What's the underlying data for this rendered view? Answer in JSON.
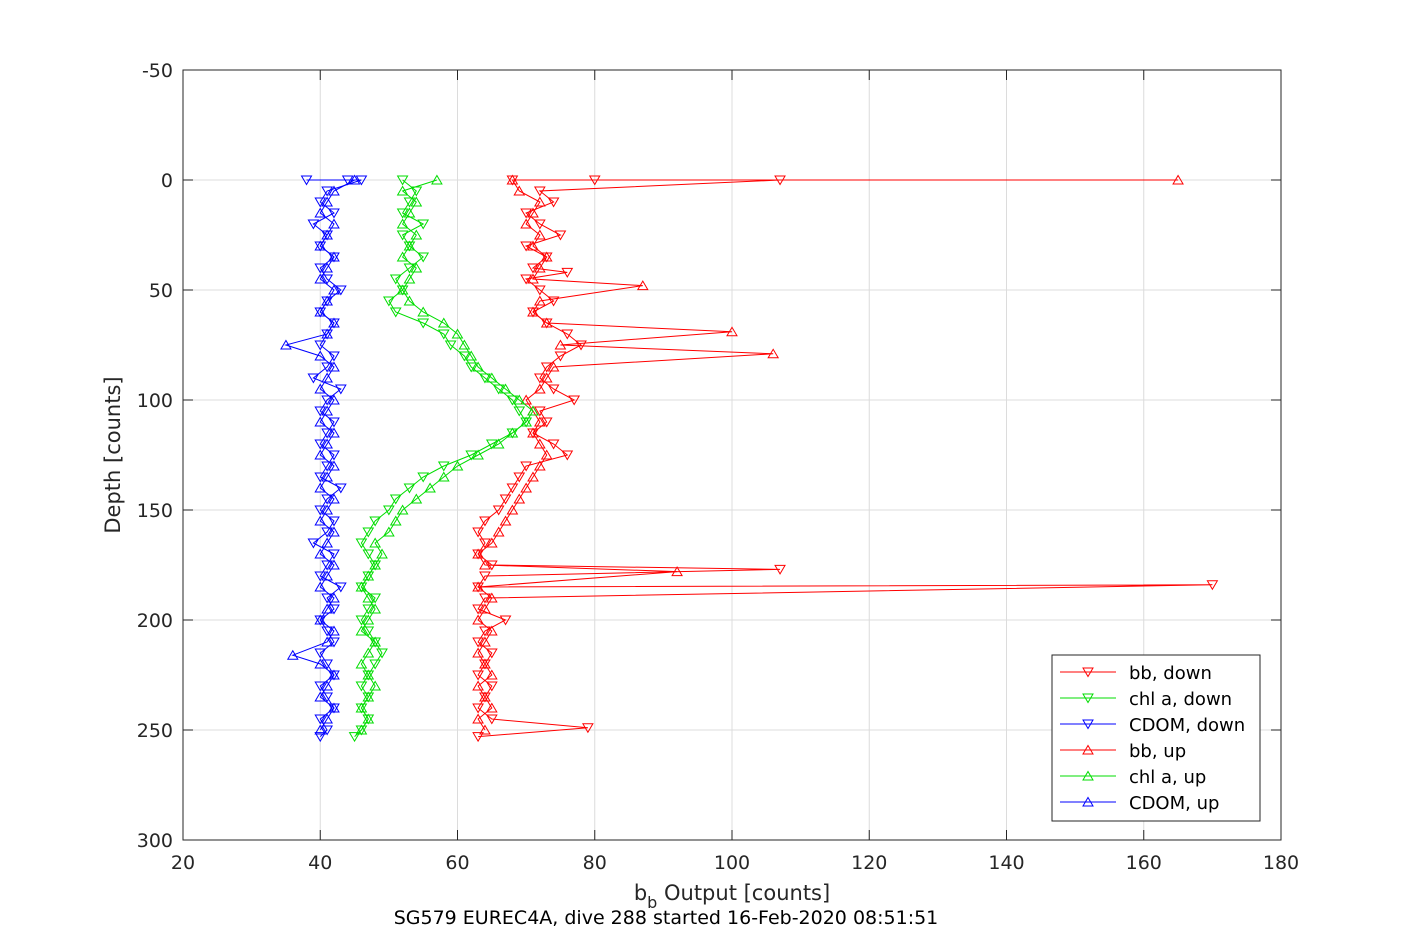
{
  "chart_data": {
    "type": "line",
    "title": "",
    "xlabel": "b",
    "xlabel_sub": "b",
    "xlabel_rest": " Output [counts]",
    "ylabel": "Depth [counts]",
    "caption": "SG579 EUREC4A, dive 288 started 16-Feb-2020 08:51:51",
    "xlim": [
      20,
      180
    ],
    "ylim": [
      -50,
      300
    ],
    "y_reversed": true,
    "grid": true,
    "legend_position": "bottom-right",
    "x_ticks": [
      "20",
      "40",
      "60",
      "80",
      "100",
      "120",
      "140",
      "160",
      "180"
    ],
    "y_ticks": [
      "-50",
      "0",
      "50",
      "100",
      "150",
      "200",
      "250",
      "300"
    ],
    "x_tick_values": [
      20,
      40,
      60,
      80,
      100,
      120,
      140,
      160,
      180
    ],
    "y_tick_values": [
      -50,
      0,
      50,
      100,
      150,
      200,
      250,
      300
    ],
    "series": [
      {
        "name": "bb, down",
        "color": "#ff0000",
        "marker": "triangle-down",
        "points": [
          [
            68,
            0
          ],
          [
            80,
            0
          ],
          [
            107,
            0
          ],
          [
            72,
            5
          ],
          [
            74,
            10
          ],
          [
            70,
            15
          ],
          [
            72,
            20
          ],
          [
            75,
            25
          ],
          [
            70,
            30
          ],
          [
            73,
            35
          ],
          [
            71,
            40
          ],
          [
            76,
            42
          ],
          [
            70,
            45
          ],
          [
            72,
            50
          ],
          [
            74,
            55
          ],
          [
            71,
            60
          ],
          [
            73,
            65
          ],
          [
            76,
            70
          ],
          [
            78,
            75
          ],
          [
            75,
            80
          ],
          [
            73,
            85
          ],
          [
            72,
            90
          ],
          [
            74,
            95
          ],
          [
            77,
            100
          ],
          [
            72,
            105
          ],
          [
            73,
            110
          ],
          [
            71,
            115
          ],
          [
            74,
            120
          ],
          [
            76,
            125
          ],
          [
            70,
            130
          ],
          [
            69,
            135
          ],
          [
            68,
            140
          ],
          [
            67,
            145
          ],
          [
            66,
            150
          ],
          [
            64,
            155
          ],
          [
            63,
            160
          ],
          [
            64,
            165
          ],
          [
            63,
            170
          ],
          [
            65,
            175
          ],
          [
            107,
            177
          ],
          [
            64,
            180
          ],
          [
            63,
            185
          ],
          [
            170,
            184
          ],
          [
            64,
            190
          ],
          [
            63,
            195
          ],
          [
            67,
            200
          ],
          [
            64,
            205
          ],
          [
            63,
            210
          ],
          [
            65,
            215
          ],
          [
            64,
            220
          ],
          [
            63,
            225
          ],
          [
            65,
            230
          ],
          [
            64,
            235
          ],
          [
            63,
            240
          ],
          [
            65,
            245
          ],
          [
            79,
            249
          ],
          [
            63,
            253
          ]
        ]
      },
      {
        "name": "chl a, down",
        "color": "#00dd00",
        "marker": "triangle-down",
        "points": [
          [
            52,
            0
          ],
          [
            54,
            5
          ],
          [
            53,
            10
          ],
          [
            52,
            15
          ],
          [
            55,
            20
          ],
          [
            52,
            25
          ],
          [
            53,
            30
          ],
          [
            55,
            35
          ],
          [
            53,
            40
          ],
          [
            51,
            45
          ],
          [
            52,
            50
          ],
          [
            50,
            55
          ],
          [
            51,
            60
          ],
          [
            55,
            65
          ],
          [
            58,
            70
          ],
          [
            59,
            75
          ],
          [
            61,
            80
          ],
          [
            62,
            85
          ],
          [
            64,
            90
          ],
          [
            66,
            95
          ],
          [
            68,
            100
          ],
          [
            69,
            105
          ],
          [
            70,
            110
          ],
          [
            68,
            115
          ],
          [
            65,
            120
          ],
          [
            62,
            125
          ],
          [
            58,
            130
          ],
          [
            55,
            135
          ],
          [
            53,
            140
          ],
          [
            51,
            145
          ],
          [
            50,
            150
          ],
          [
            48,
            155
          ],
          [
            47,
            160
          ],
          [
            46,
            165
          ],
          [
            47,
            170
          ],
          [
            48,
            175
          ],
          [
            47,
            180
          ],
          [
            46,
            185
          ],
          [
            48,
            190
          ],
          [
            47,
            195
          ],
          [
            46,
            200
          ],
          [
            47,
            205
          ],
          [
            48,
            210
          ],
          [
            49,
            215
          ],
          [
            48,
            220
          ],
          [
            47,
            225
          ],
          [
            46,
            230
          ],
          [
            47,
            235
          ],
          [
            46,
            240
          ],
          [
            47,
            245
          ],
          [
            46,
            250
          ],
          [
            45,
            253
          ]
        ]
      },
      {
        "name": "CDOM, down",
        "color": "#0000ff",
        "marker": "triangle-down",
        "points": [
          [
            38,
            0
          ],
          [
            44,
            0
          ],
          [
            46,
            0
          ],
          [
            41,
            5
          ],
          [
            40,
            10
          ],
          [
            42,
            15
          ],
          [
            39,
            20
          ],
          [
            41,
            25
          ],
          [
            40,
            30
          ],
          [
            42,
            35
          ],
          [
            40,
            40
          ],
          [
            41,
            45
          ],
          [
            43,
            50
          ],
          [
            41,
            55
          ],
          [
            40,
            60
          ],
          [
            42,
            65
          ],
          [
            41,
            70
          ],
          [
            40,
            75
          ],
          [
            42,
            80
          ],
          [
            41,
            85
          ],
          [
            39,
            90
          ],
          [
            43,
            95
          ],
          [
            41,
            100
          ],
          [
            40,
            105
          ],
          [
            42,
            110
          ],
          [
            41,
            115
          ],
          [
            40,
            120
          ],
          [
            42,
            125
          ],
          [
            41,
            130
          ],
          [
            40,
            135
          ],
          [
            43,
            140
          ],
          [
            41,
            145
          ],
          [
            40,
            150
          ],
          [
            42,
            155
          ],
          [
            41,
            160
          ],
          [
            39,
            165
          ],
          [
            42,
            170
          ],
          [
            41,
            175
          ],
          [
            40,
            180
          ],
          [
            43,
            185
          ],
          [
            41,
            190
          ],
          [
            42,
            195
          ],
          [
            40,
            200
          ],
          [
            41,
            205
          ],
          [
            42,
            210
          ],
          [
            40,
            215
          ],
          [
            41,
            220
          ],
          [
            42,
            225
          ],
          [
            40,
            230
          ],
          [
            41,
            235
          ],
          [
            42,
            240
          ],
          [
            40,
            245
          ],
          [
            41,
            250
          ],
          [
            40,
            253
          ]
        ]
      },
      {
        "name": "bb, up",
        "color": "#ff0000",
        "marker": "triangle-up",
        "points": [
          [
            64,
            250
          ],
          [
            63,
            245
          ],
          [
            65,
            240
          ],
          [
            64,
            235
          ],
          [
            63,
            230
          ],
          [
            65,
            225
          ],
          [
            64,
            220
          ],
          [
            63,
            215
          ],
          [
            64,
            210
          ],
          [
            65,
            205
          ],
          [
            63,
            200
          ],
          [
            64,
            195
          ],
          [
            65,
            190
          ],
          [
            63,
            185
          ],
          [
            92,
            178
          ],
          [
            64,
            175
          ],
          [
            63,
            170
          ],
          [
            65,
            165
          ],
          [
            66,
            160
          ],
          [
            67,
            155
          ],
          [
            68,
            150
          ],
          [
            69,
            145
          ],
          [
            70,
            140
          ],
          [
            71,
            135
          ],
          [
            72,
            130
          ],
          [
            73,
            125
          ],
          [
            72,
            120
          ],
          [
            71,
            115
          ],
          [
            72,
            110
          ],
          [
            71,
            105
          ],
          [
            70,
            100
          ],
          [
            72,
            95
          ],
          [
            73,
            90
          ],
          [
            74,
            85
          ],
          [
            106,
            79
          ],
          [
            75,
            75
          ],
          [
            100,
            69
          ],
          [
            73,
            65
          ],
          [
            71,
            60
          ],
          [
            72,
            55
          ],
          [
            87,
            48
          ],
          [
            71,
            45
          ],
          [
            72,
            40
          ],
          [
            73,
            35
          ],
          [
            71,
            30
          ],
          [
            72,
            25
          ],
          [
            70,
            20
          ],
          [
            71,
            15
          ],
          [
            72,
            10
          ],
          [
            69,
            5
          ],
          [
            68,
            0
          ],
          [
            165,
            0
          ]
        ]
      },
      {
        "name": "chl a, up",
        "color": "#00dd00",
        "marker": "triangle-up",
        "points": [
          [
            46,
            250
          ],
          [
            47,
            245
          ],
          [
            46,
            240
          ],
          [
            47,
            235
          ],
          [
            48,
            230
          ],
          [
            47,
            225
          ],
          [
            46,
            220
          ],
          [
            47,
            215
          ],
          [
            48,
            210
          ],
          [
            46,
            205
          ],
          [
            47,
            200
          ],
          [
            48,
            195
          ],
          [
            47,
            190
          ],
          [
            46,
            185
          ],
          [
            47,
            180
          ],
          [
            48,
            175
          ],
          [
            49,
            170
          ],
          [
            48,
            165
          ],
          [
            50,
            160
          ],
          [
            51,
            155
          ],
          [
            52,
            150
          ],
          [
            54,
            145
          ],
          [
            56,
            140
          ],
          [
            58,
            135
          ],
          [
            60,
            130
          ],
          [
            63,
            125
          ],
          [
            66,
            120
          ],
          [
            68,
            115
          ],
          [
            70,
            110
          ],
          [
            71,
            105
          ],
          [
            69,
            100
          ],
          [
            67,
            95
          ],
          [
            65,
            90
          ],
          [
            63,
            85
          ],
          [
            62,
            80
          ],
          [
            61,
            75
          ],
          [
            60,
            70
          ],
          [
            58,
            65
          ],
          [
            55,
            60
          ],
          [
            53,
            55
          ],
          [
            52,
            50
          ],
          [
            53,
            45
          ],
          [
            54,
            40
          ],
          [
            52,
            35
          ],
          [
            53,
            30
          ],
          [
            54,
            25
          ],
          [
            52,
            20
          ],
          [
            53,
            15
          ],
          [
            54,
            10
          ],
          [
            52,
            5
          ],
          [
            57,
            0
          ]
        ]
      },
      {
        "name": "CDOM, up",
        "color": "#0000ff",
        "marker": "triangle-up",
        "points": [
          [
            40,
            250
          ],
          [
            41,
            245
          ],
          [
            42,
            240
          ],
          [
            40,
            235
          ],
          [
            41,
            230
          ],
          [
            42,
            225
          ],
          [
            40,
            220
          ],
          [
            36,
            216
          ],
          [
            41,
            210
          ],
          [
            42,
            205
          ],
          [
            40,
            200
          ],
          [
            41,
            195
          ],
          [
            42,
            190
          ],
          [
            40,
            185
          ],
          [
            41,
            180
          ],
          [
            42,
            175
          ],
          [
            40,
            170
          ],
          [
            41,
            165
          ],
          [
            42,
            160
          ],
          [
            40,
            155
          ],
          [
            41,
            150
          ],
          [
            42,
            145
          ],
          [
            40,
            140
          ],
          [
            41,
            135
          ],
          [
            42,
            130
          ],
          [
            40,
            125
          ],
          [
            41,
            120
          ],
          [
            42,
            115
          ],
          [
            40,
            110
          ],
          [
            41,
            105
          ],
          [
            42,
            100
          ],
          [
            40,
            95
          ],
          [
            41,
            90
          ],
          [
            42,
            85
          ],
          [
            40,
            80
          ],
          [
            35,
            75
          ],
          [
            41,
            70
          ],
          [
            42,
            65
          ],
          [
            40,
            60
          ],
          [
            41,
            55
          ],
          [
            42,
            50
          ],
          [
            40,
            45
          ],
          [
            41,
            40
          ],
          [
            42,
            35
          ],
          [
            40,
            30
          ],
          [
            41,
            25
          ],
          [
            42,
            20
          ],
          [
            40,
            15
          ],
          [
            41,
            10
          ],
          [
            42,
            5
          ],
          [
            45,
            0
          ]
        ]
      }
    ]
  }
}
